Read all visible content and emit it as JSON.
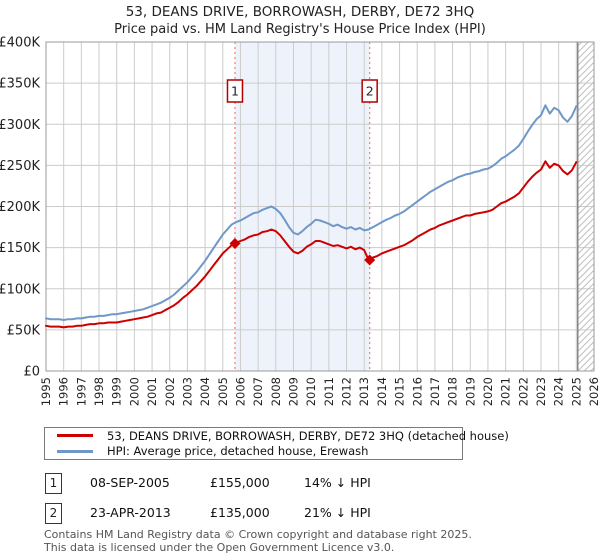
{
  "title": {
    "line1": "53, DEANS DRIVE, BORROWASH, DERBY, DE72 3HQ",
    "line2": "Price paid vs. HM Land Registry's House Price Index (HPI)"
  },
  "colors": {
    "price_line": "#cc0000",
    "hpi_line": "#6f97c7",
    "grid": "#cccccc",
    "plot_border": "#999999",
    "sale_period_shade": "#eef2fb",
    "event_dotted_line": "#ff7777",
    "event_box_border": "#b00000",
    "hatch_line": "#c0c0c0",
    "hatch_boundary": "#888888",
    "axis_text": "#222222",
    "footer_text": "#555555"
  },
  "chart_data": {
    "type": "line",
    "title": "53, DEANS DRIVE, BORROWASH, DERBY, DE72 3HQ — Price paid vs. HM Land Registry's House Price Index (HPI)",
    "xlabel": "",
    "ylabel": "",
    "x_range": [
      1995,
      2026
    ],
    "y_range_k": [
      0,
      400
    ],
    "y_unit": "GBP (thousands)",
    "grid": true,
    "legend_position": "bottom",
    "x_ticks": [
      "1995",
      "1996",
      "1997",
      "1998",
      "1999",
      "2000",
      "2001",
      "2002",
      "2003",
      "2004",
      "2005",
      "2006",
      "2007",
      "2008",
      "2009",
      "2010",
      "2011",
      "2012",
      "2013",
      "2014",
      "2015",
      "2016",
      "2017",
      "2018",
      "2019",
      "2020",
      "2021",
      "2022",
      "2023",
      "2024",
      "2025",
      "2026"
    ],
    "y_ticks": [
      {
        "v": 0,
        "label": "£0"
      },
      {
        "v": 50,
        "label": "£50K"
      },
      {
        "v": 100,
        "label": "£100K"
      },
      {
        "v": 150,
        "label": "£150K"
      },
      {
        "v": 200,
        "label": "£200K"
      },
      {
        "v": 250,
        "label": "£250K"
      },
      {
        "v": 300,
        "label": "£300K"
      },
      {
        "v": 350,
        "label": "£350K"
      },
      {
        "v": 400,
        "label": "£400K"
      }
    ],
    "series": [
      {
        "name": "HPI: Average price, detached house, Erewash",
        "color_key": "hpi_line",
        "start_year": 1995,
        "step_years": 0.25,
        "values_k": [
          64,
          63,
          63,
          63,
          62,
          63,
          63,
          64,
          64,
          65,
          66,
          66,
          67,
          67,
          68,
          69,
          69,
          70,
          71,
          72,
          73,
          74,
          75,
          77,
          79,
          81,
          83,
          86,
          89,
          93,
          98,
          103,
          108,
          114,
          120,
          127,
          134,
          142,
          150,
          158,
          166,
          172,
          178,
          181,
          183,
          186,
          189,
          192,
          193,
          196,
          198,
          200,
          197,
          192,
          184,
          175,
          168,
          166,
          170,
          175,
          179,
          184,
          183,
          181,
          179,
          176,
          178,
          175,
          173,
          175,
          172,
          174,
          171,
          172,
          175,
          178,
          181,
          184,
          186,
          189,
          191,
          194,
          198,
          202,
          206,
          210,
          214,
          218,
          221,
          224,
          227,
          230,
          232,
          235,
          237,
          239,
          240,
          242,
          243,
          245,
          246,
          249,
          253,
          258,
          261,
          265,
          269,
          274,
          282,
          291,
          299,
          306,
          311,
          323,
          313,
          320,
          317,
          308,
          303,
          310,
          322
        ]
      },
      {
        "name": "53, DEANS DRIVE, BORROWASH, DERBY, DE72 3HQ (detached house)",
        "color_key": "price_line",
        "start_year": 1995,
        "step_years": 0.25,
        "values_k": [
          55,
          54,
          54,
          54,
          53,
          54,
          54,
          55,
          55,
          56,
          57,
          57,
          58,
          58,
          59,
          59,
          59,
          60,
          61,
          62,
          63,
          64,
          65,
          66,
          68,
          70,
          71,
          74,
          77,
          80,
          84,
          89,
          93,
          98,
          103,
          109,
          115,
          122,
          129,
          136,
          143,
          148,
          153,
          156,
          158,
          160,
          163,
          165,
          166,
          169,
          170,
          172,
          170,
          165,
          158,
          151,
          145,
          143,
          146,
          151,
          154,
          158,
          158,
          156,
          154,
          152,
          153,
          151,
          149,
          151,
          148,
          150,
          147,
          135,
          138,
          140,
          143,
          145,
          147,
          149,
          151,
          153,
          156,
          159,
          163,
          166,
          169,
          172,
          174,
          177,
          179,
          181,
          183,
          185,
          187,
          189,
          189,
          191,
          192,
          193,
          194,
          196,
          200,
          204,
          206,
          209,
          212,
          216,
          223,
          230,
          236,
          241,
          245,
          255,
          247,
          252,
          250,
          243,
          239,
          244,
          254
        ]
      }
    ],
    "sales": [
      {
        "label": "1",
        "year": 2005.69,
        "price_k": 155
      },
      {
        "label": "2",
        "year": 2013.31,
        "price_k": 135
      }
    ],
    "shaded_span": [
      2005.69,
      2013.31
    ],
    "hatch_span": [
      2025.08,
      2026
    ]
  },
  "legend": {
    "items": [
      {
        "label": "53, DEANS DRIVE, BORROWASH, DERBY, DE72 3HQ (detached house)",
        "color_key": "price_line"
      },
      {
        "label": "HPI: Average price, detached house, Erewash",
        "color_key": "hpi_line"
      }
    ]
  },
  "annotations": {
    "rows": [
      {
        "num": "1",
        "date": "08-SEP-2005",
        "price": "£155,000",
        "hpi": "14% ↓ HPI"
      },
      {
        "num": "2",
        "date": "23-APR-2013",
        "price": "£135,000",
        "hpi": "21% ↓ HPI"
      }
    ]
  },
  "footer": {
    "line1": "Contains HM Land Registry data © Crown copyright and database right 2025.",
    "line2": "This data is licensed under the Open Government Licence v3.0."
  }
}
